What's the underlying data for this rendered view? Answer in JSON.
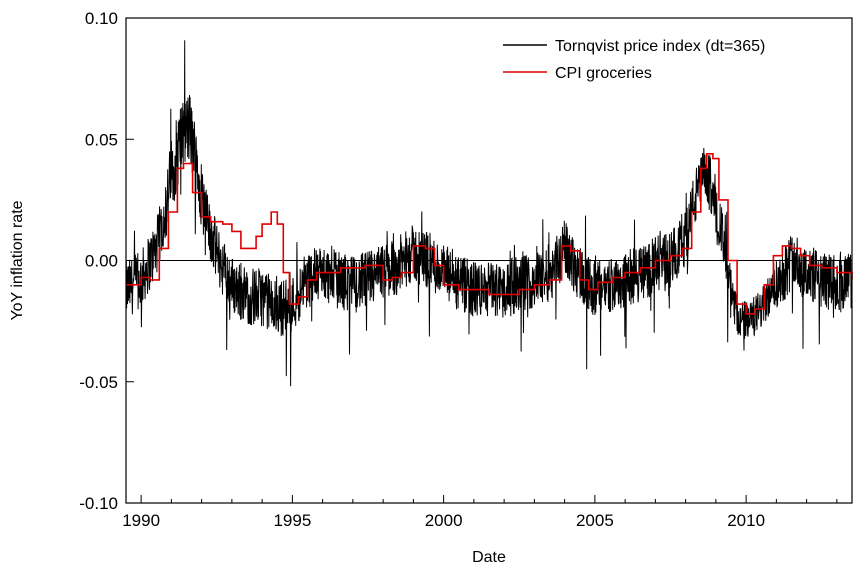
{
  "chart_data": {
    "type": "line",
    "title": "",
    "xlabel": "Date",
    "ylabel": "YoY inflation rate",
    "xlim": [
      1989.5,
      2013.5
    ],
    "ylim": [
      -0.1,
      0.1
    ],
    "x_ticks": [
      1990,
      1995,
      2000,
      2005,
      2010
    ],
    "x_tick_labels": [
      "1990",
      "1995",
      "2000",
      "2005",
      "2010"
    ],
    "y_ticks": [
      -0.1,
      -0.05,
      0.0,
      0.05,
      0.1
    ],
    "y_tick_labels": [
      "-0.10",
      "-0.05",
      "0.00",
      "0.05",
      "0.10"
    ],
    "grid": false,
    "reference_line": {
      "y": 0.0,
      "color": "#000000"
    },
    "legend": {
      "position": "top-right",
      "entries": [
        "Tornqvist price index (dt=365)",
        "CPI groceries"
      ]
    },
    "series": [
      {
        "name": "Tornqvist price index (dt=365)",
        "color": "#000000",
        "style": "noisy-line",
        "x": [
          1989.5,
          1990.0,
          1990.5,
          1990.8,
          1991.0,
          1991.3,
          1991.6,
          1991.9,
          1992.2,
          1992.6,
          1993.0,
          1993.5,
          1994.0,
          1994.5,
          1995.0,
          1995.5,
          1996.0,
          1996.5,
          1997.0,
          1997.5,
          1998.0,
          1998.5,
          1999.0,
          1999.5,
          2000.0,
          2000.5,
          2001.0,
          2001.5,
          2002.0,
          2002.5,
          2003.0,
          2003.5,
          2004.0,
          2004.5,
          2005.0,
          2005.5,
          2006.0,
          2006.5,
          2007.0,
          2007.5,
          2008.0,
          2008.3,
          2008.6,
          2008.9,
          2009.2,
          2009.5,
          2009.8,
          2010.1,
          2010.5,
          2011.0,
          2011.5,
          2012.0,
          2012.5,
          2013.0,
          2013.5
        ],
        "y": [
          -0.012,
          -0.008,
          0.005,
          0.02,
          0.035,
          0.05,
          0.055,
          0.035,
          0.015,
          0.0,
          -0.01,
          -0.015,
          -0.015,
          -0.02,
          -0.018,
          -0.008,
          -0.005,
          -0.008,
          -0.01,
          -0.008,
          -0.005,
          -0.002,
          0.003,
          0.0,
          -0.005,
          -0.01,
          -0.012,
          -0.012,
          -0.012,
          -0.01,
          -0.008,
          -0.005,
          0.005,
          -0.005,
          -0.012,
          -0.01,
          -0.008,
          -0.005,
          -0.002,
          0.0,
          0.01,
          0.025,
          0.035,
          0.03,
          0.01,
          -0.015,
          -0.025,
          -0.025,
          -0.02,
          -0.01,
          0.0,
          -0.005,
          -0.008,
          -0.01,
          -0.008
        ],
        "noise_amplitude": 0.012
      },
      {
        "name": "CPI groceries",
        "color": "#e00000",
        "style": "step",
        "x": [
          1989.5,
          1990.0,
          1990.3,
          1990.6,
          1990.9,
          1991.2,
          1991.4,
          1991.7,
          1992.0,
          1992.3,
          1992.7,
          1993.0,
          1993.3,
          1993.6,
          1993.8,
          1994.0,
          1994.3,
          1994.5,
          1994.7,
          1994.9,
          1995.2,
          1995.5,
          1995.8,
          1996.2,
          1996.6,
          1997.0,
          1997.4,
          1997.8,
          1998.0,
          1998.3,
          1998.6,
          1999.0,
          1999.4,
          1999.7,
          2000.0,
          2000.5,
          2001.0,
          2001.5,
          2002.0,
          2002.5,
          2003.0,
          2003.5,
          2003.9,
          2004.2,
          2004.5,
          2004.8,
          2005.1,
          2005.6,
          2006.0,
          2006.5,
          2007.0,
          2007.5,
          2007.9,
          2008.2,
          2008.5,
          2008.7,
          2008.9,
          2009.1,
          2009.4,
          2009.7,
          2010.0,
          2010.3,
          2010.6,
          2010.9,
          2011.2,
          2011.5,
          2011.8,
          2012.1,
          2012.5,
          2013.0,
          2013.5
        ],
        "y": [
          -0.01,
          -0.007,
          -0.008,
          0.005,
          0.02,
          0.038,
          0.04,
          0.028,
          0.018,
          0.016,
          0.015,
          0.012,
          0.005,
          0.005,
          0.01,
          0.015,
          0.02,
          0.015,
          -0.005,
          -0.018,
          -0.015,
          -0.008,
          -0.005,
          -0.005,
          -0.003,
          -0.003,
          -0.002,
          -0.002,
          -0.008,
          -0.007,
          -0.005,
          0.006,
          0.005,
          -0.002,
          -0.01,
          -0.012,
          -0.012,
          -0.014,
          -0.014,
          -0.012,
          -0.01,
          -0.008,
          0.006,
          0.004,
          -0.008,
          -0.012,
          -0.009,
          -0.007,
          -0.005,
          -0.003,
          0.0,
          0.002,
          0.005,
          0.02,
          0.038,
          0.044,
          0.042,
          0.025,
          0.0,
          -0.018,
          -0.022,
          -0.02,
          -0.01,
          0.002,
          0.006,
          0.005,
          0.002,
          -0.002,
          -0.003,
          -0.005,
          -0.008
        ]
      }
    ]
  }
}
